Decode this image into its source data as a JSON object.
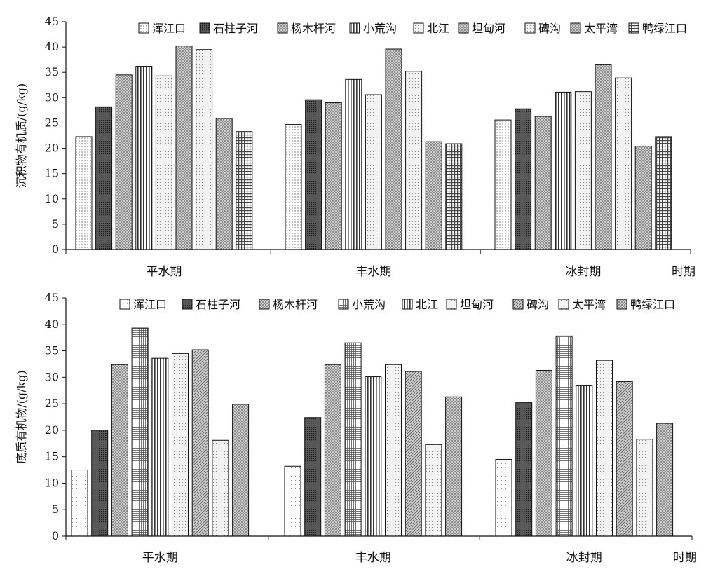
{
  "chart_data": [
    {
      "type": "bar",
      "ylabel": "沉积物有机质/(g/kg)",
      "xlabel": "时期",
      "categories": [
        "平水期",
        "丰水期",
        "冰封期"
      ],
      "ylim": [
        0,
        45
      ],
      "yticks": [
        0,
        5,
        10,
        15,
        20,
        25,
        30,
        35,
        40,
        45
      ],
      "grid": false,
      "legend_position": "top",
      "series": [
        {
          "name": "浑江口",
          "values": [
            22.3,
            24.7,
            25.6
          ]
        },
        {
          "name": "石柱子河",
          "values": [
            28.2,
            29.6,
            27.8
          ]
        },
        {
          "name": "杨木杆河",
          "values": [
            34.5,
            29.0,
            26.3
          ]
        },
        {
          "name": "小荒沟",
          "values": [
            36.2,
            33.6,
            31.1
          ]
        },
        {
          "name": "北江",
          "values": [
            34.3,
            30.6,
            31.2
          ]
        },
        {
          "name": "坦甸河",
          "values": [
            40.2,
            39.6,
            36.5
          ]
        },
        {
          "name": "碑沟",
          "values": [
            39.5,
            35.2,
            33.9
          ]
        },
        {
          "name": "太平湾",
          "values": [
            25.9,
            21.3,
            20.4
          ]
        },
        {
          "name": "鸭绿江口",
          "values": [
            23.3,
            20.9,
            22.3
          ]
        }
      ]
    },
    {
      "type": "bar",
      "ylabel": "底质有机物/(g/kg)",
      "xlabel": "时期",
      "categories": [
        "平水期",
        "丰水期",
        "冰封期"
      ],
      "ylim": [
        0,
        45
      ],
      "yticks": [
        0,
        5,
        10,
        15,
        20,
        25,
        30,
        35,
        40,
        45
      ],
      "grid": false,
      "legend_position": "top",
      "series": [
        {
          "name": "浑江口",
          "values": [
            12.5,
            13.2,
            14.5
          ]
        },
        {
          "name": "石柱子河",
          "values": [
            20.0,
            22.4,
            25.2
          ]
        },
        {
          "name": "杨木杆河",
          "values": [
            32.4,
            32.4,
            31.3
          ]
        },
        {
          "name": "小荒沟",
          "values": [
            39.3,
            36.5,
            37.8
          ]
        },
        {
          "name": "北江",
          "values": [
            33.6,
            30.1,
            28.4
          ]
        },
        {
          "name": "坦甸河",
          "values": [
            34.5,
            32.4,
            33.2
          ]
        },
        {
          "name": "碑沟",
          "values": [
            35.2,
            31.1,
            29.2
          ]
        },
        {
          "name": "太平湾",
          "values": [
            18.1,
            17.3,
            18.3
          ]
        },
        {
          "name": "鸭绿江口",
          "values": [
            24.9,
            26.3,
            21.3
          ]
        }
      ]
    }
  ]
}
